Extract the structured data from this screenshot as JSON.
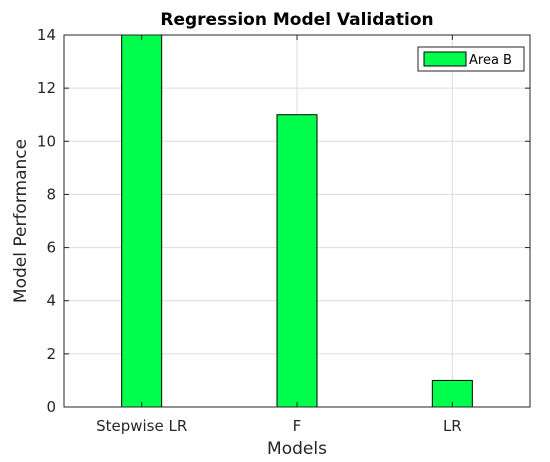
{
  "chart_data": {
    "type": "bar",
    "title": "Regression Model Validation",
    "xlabel": "Models",
    "ylabel": "Model Performance",
    "categories": [
      "Stepwise LR",
      "F",
      "LR"
    ],
    "series": [
      {
        "name": "Area B",
        "values": [
          14,
          11,
          1
        ],
        "color": "#00ff4d"
      }
    ],
    "ylim": [
      0,
      14
    ],
    "yticks": [
      0,
      2,
      4,
      6,
      8,
      10,
      12,
      14
    ],
    "grid": true,
    "legend_position": "top-right"
  }
}
